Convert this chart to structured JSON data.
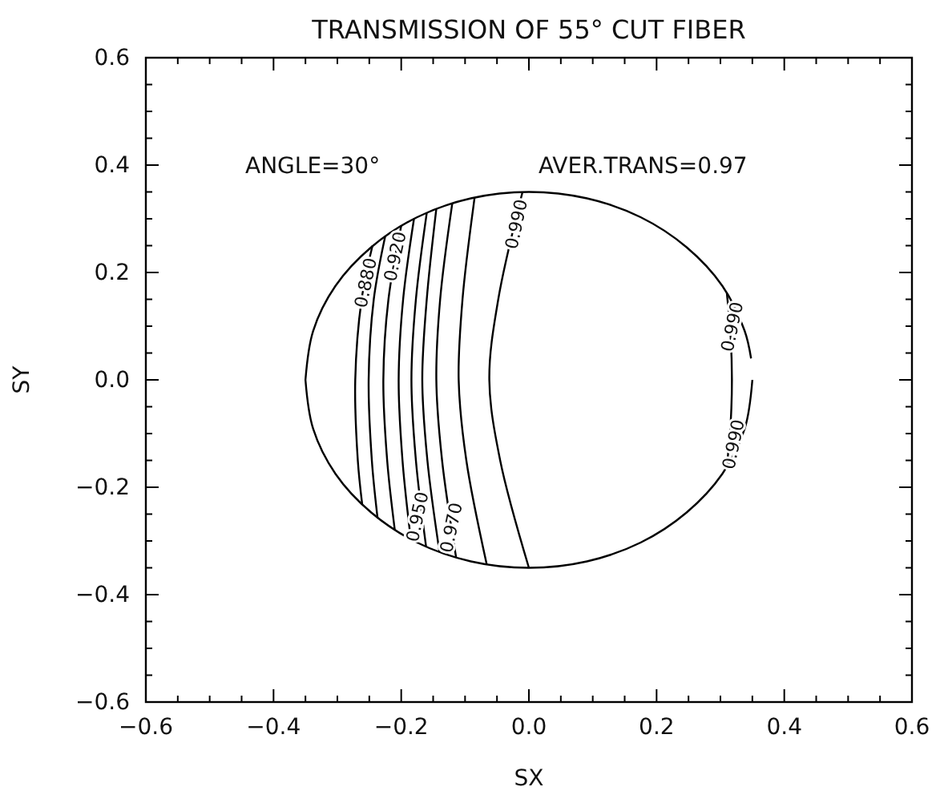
{
  "chart_data": {
    "type": "line",
    "title": "TRANSMISSION OF 55° CUT FIBER",
    "xlabel": "SX",
    "ylabel": "SY",
    "xlim": [
      -0.6,
      0.6
    ],
    "ylim": [
      -0.6,
      0.6
    ],
    "xticks": [
      {
        "value": -0.6,
        "label": "−0.6"
      },
      {
        "value": -0.55,
        "label": null
      },
      {
        "value": -0.5,
        "label": null
      },
      {
        "value": -0.45,
        "label": null
      },
      {
        "value": -0.4,
        "label": "−0.4"
      },
      {
        "value": -0.35,
        "label": null
      },
      {
        "value": -0.3,
        "label": null
      },
      {
        "value": -0.25,
        "label": null
      },
      {
        "value": -0.2,
        "label": "−0.2"
      },
      {
        "value": -0.15,
        "label": null
      },
      {
        "value": -0.1,
        "label": null
      },
      {
        "value": -0.05,
        "label": null
      },
      {
        "value": 0,
        "label": "0.0"
      },
      {
        "value": 0.05,
        "label": null
      },
      {
        "value": 0.1,
        "label": null
      },
      {
        "value": 0.15,
        "label": null
      },
      {
        "value": 0.2,
        "label": "0.2"
      },
      {
        "value": 0.25,
        "label": null
      },
      {
        "value": 0.3,
        "label": null
      },
      {
        "value": 0.35,
        "label": null
      },
      {
        "value": 0.4,
        "label": "0.4"
      },
      {
        "value": 0.45,
        "label": null
      },
      {
        "value": 0.5,
        "label": null
      },
      {
        "value": 0.55,
        "label": null
      },
      {
        "value": 0.6,
        "label": "0.6"
      }
    ],
    "yticks": [
      {
        "value": -0.6,
        "label": "−0.6"
      },
      {
        "value": -0.55,
        "label": null
      },
      {
        "value": -0.5,
        "label": null
      },
      {
        "value": -0.45,
        "label": null
      },
      {
        "value": -0.4,
        "label": "−0.4"
      },
      {
        "value": -0.35,
        "label": null
      },
      {
        "value": -0.3,
        "label": null
      },
      {
        "value": -0.25,
        "label": null
      },
      {
        "value": -0.2,
        "label": "−0.2"
      },
      {
        "value": -0.15,
        "label": null
      },
      {
        "value": -0.1,
        "label": null
      },
      {
        "value": -0.05,
        "label": null
      },
      {
        "value": 0,
        "label": "0.0"
      },
      {
        "value": 0.05,
        "label": null
      },
      {
        "value": 0.1,
        "label": null
      },
      {
        "value": 0.15,
        "label": null
      },
      {
        "value": 0.2,
        "label": "0.2"
      },
      {
        "value": 0.25,
        "label": null
      },
      {
        "value": 0.3,
        "label": null
      },
      {
        "value": 0.35,
        "label": null
      },
      {
        "value": 0.4,
        "label": "0.4"
      },
      {
        "value": 0.45,
        "label": null
      },
      {
        "value": 0.5,
        "label": null
      },
      {
        "value": 0.55,
        "label": null
      },
      {
        "value": 0.6,
        "label": "0.6"
      }
    ],
    "grid": false,
    "marker": "none",
    "line_style": "solid",
    "series": [
      {
        "color": "#000000",
        "x": [
          0.348,
          0.338,
          0.303,
          0.247,
          0.175,
          0.091,
          0,
          -0.091,
          -0.175,
          -0.247,
          -0.303,
          -0.338,
          -0.35
        ],
        "values": [
          0.04,
          0.091,
          0.175,
          0.247,
          0.303,
          0.338,
          0.35,
          0.338,
          0.303,
          0.247,
          0.175,
          0.091,
          0
        ]
      },
      {
        "color": "#000000",
        "x": [
          -0.35,
          -0.338,
          -0.303,
          -0.247,
          -0.175,
          -0.091,
          0,
          0.091,
          0.175,
          0.247,
          0.303,
          0.338,
          0.35
        ],
        "values": [
          0,
          -0.091,
          -0.175,
          -0.247,
          -0.303,
          -0.338,
          -0.35,
          -0.338,
          -0.303,
          -0.247,
          -0.175,
          -0.091,
          0
        ]
      },
      {
        "color": "#000000",
        "x": [
          -0.245,
          -0.262,
          -0.272,
          -0.268,
          -0.261
        ],
        "values": [
          0.25,
          0.15,
          0,
          -0.15,
          -0.233
        ]
      },
      {
        "color": "#000000",
        "x": [
          -0.225,
          -0.243,
          -0.251,
          -0.246,
          -0.237
        ],
        "values": [
          0.268,
          0.15,
          0,
          -0.15,
          -0.258
        ]
      },
      {
        "color": "#000000",
        "x": [
          -0.2,
          -0.22,
          -0.228,
          -0.222,
          -0.21
        ],
        "values": [
          0.287,
          0.15,
          0,
          -0.15,
          -0.28
        ]
      },
      {
        "color": "#000000",
        "x": [
          -0.18,
          -0.197,
          -0.204,
          -0.198,
          -0.185
        ],
        "values": [
          0.3,
          0.15,
          0,
          -0.15,
          -0.297
        ]
      },
      {
        "color": "#000000",
        "x": [
          -0.16,
          -0.177,
          -0.184,
          -0.177,
          -0.161
        ],
        "values": [
          0.311,
          0.15,
          0,
          -0.15,
          -0.311
        ]
      },
      {
        "color": "#000000",
        "x": [
          -0.145,
          -0.16,
          -0.167,
          -0.159,
          -0.14
        ],
        "values": [
          0.319,
          0.15,
          0,
          -0.15,
          -0.321
        ]
      },
      {
        "color": "#000000",
        "x": [
          -0.12,
          -0.139,
          -0.145,
          -0.136,
          -0.114
        ],
        "values": [
          0.329,
          0.15,
          0,
          -0.15,
          -0.331
        ]
      },
      {
        "color": "#000000",
        "x": [
          -0.085,
          -0.104,
          -0.11,
          -0.098,
          -0.066
        ],
        "values": [
          0.34,
          0.15,
          0,
          -0.15,
          -0.344
        ]
      },
      {
        "color": "#000000",
        "x": [
          -0.01,
          -0.048,
          -0.062,
          -0.045,
          0
        ],
        "values": [
          0.35,
          0.15,
          0,
          -0.15,
          -0.35
        ]
      },
      {
        "color": "#000000",
        "x": [
          0.31,
          0.316,
          0.318,
          0.316,
          0.31
        ],
        "values": [
          0.162,
          0.08,
          0,
          -0.08,
          -0.162
        ]
      }
    ],
    "annotations": [
      "ANGLE=30°",
      "AVER.TRANS=0.97",
      {
        "text": "0.880",
        "x": -0.256,
        "y": 0.181
      },
      {
        "text": "0.920",
        "x": -0.21,
        "y": 0.23
      },
      {
        "text": "0.990",
        "x": -0.02,
        "y": 0.29
      },
      {
        "text": "0.990",
        "x": 0.318,
        "y": 0.099
      },
      {
        "text": "0.990",
        "x": 0.32,
        "y": -0.12
      },
      {
        "text": "0.950",
        "x": -0.175,
        "y": -0.255
      },
      {
        "text": "0.970",
        "x": -0.122,
        "y": -0.275
      }
    ]
  }
}
